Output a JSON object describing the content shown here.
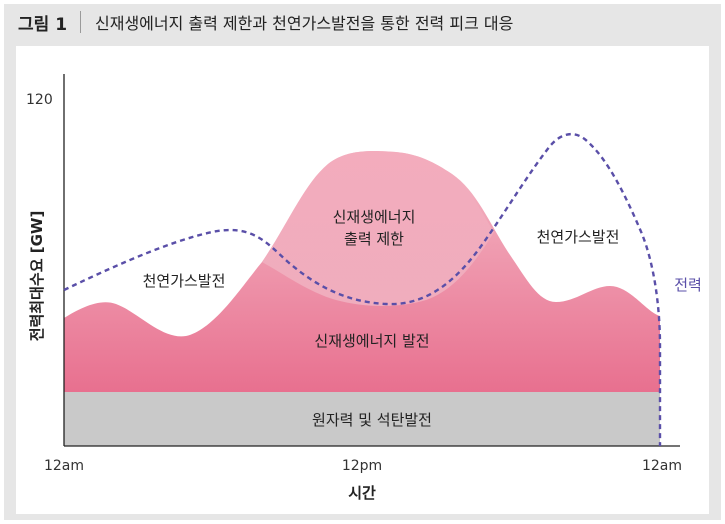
{
  "figure": {
    "label": "그림 1",
    "title": "신재생에너지 출력 제한과 천연가스발전을 통한 전력 피크 대응"
  },
  "chart_data": {
    "type": "area",
    "ylabel": "전력최대수요 [GW]",
    "xlabel": "시간",
    "y_tick": "120",
    "x_ticks": [
      "12am",
      "12pm",
      "12am"
    ],
    "regions": [
      {
        "name": "원자력 및 석탄발전",
        "color": "#c9c9c9"
      },
      {
        "name": "신재생에너지 발전",
        "color": "#e8728f"
      },
      {
        "name": "신재생에너지 출력 제한",
        "color": "#f3b6c4"
      },
      {
        "name": "천연가스발전",
        "color": "#ffffff"
      }
    ],
    "region_labels": {
      "gas_left": "천연가스발전",
      "curtail_line1": "신재생에너지",
      "curtail_line2": "출력 제한",
      "renew": "신재생에너지 발전",
      "gas_right": "천연가스발전",
      "base": "원자력 및 석탄발전"
    },
    "series": [
      {
        "name": "전력",
        "style": "dashed",
        "color": "#5a4fa8"
      }
    ]
  }
}
